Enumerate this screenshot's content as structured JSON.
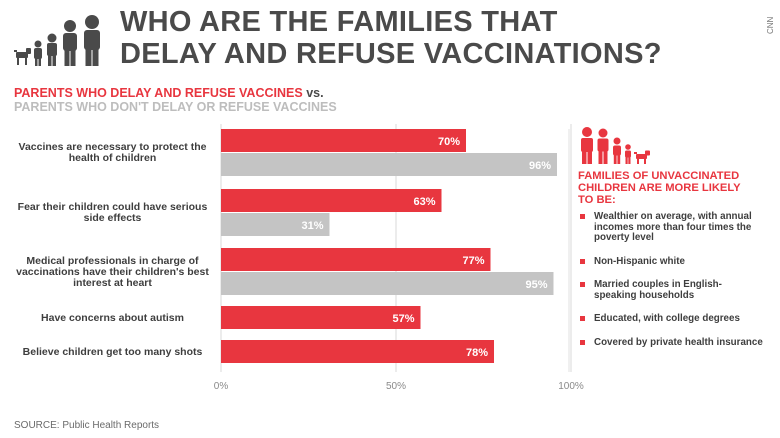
{
  "title": {
    "line1": "WHO ARE THE FAMILIES THAT",
    "line2": "DELAY AND REFUSE VACCINATIONS?"
  },
  "watermark": "CNN",
  "subtitle": {
    "red": "PARENTS WHO DELAY AND REFUSE VACCINES",
    "vs": "vs.",
    "gray": "PARENTS WHO DON'T DELAY OR REFUSE VACCINES"
  },
  "colors": {
    "red": "#e8363f",
    "gray": "#c4c4c4",
    "title": "#4a4a4a",
    "icon_gray": "#4a4a4a"
  },
  "chart_data": {
    "type": "bar",
    "orientation": "horizontal",
    "categories": [
      "Vaccines are necessary to protect the\nhealth of children",
      "Fear their children could have serious\nside effects",
      "Medical professionals in charge of\nvaccinations have their children's best\ninterest at heart",
      "Have concerns about autism",
      "Believe children get too many shots"
    ],
    "series": [
      {
        "name": "PARENTS WHO DELAY AND REFUSE VACCINES",
        "color": "#e8363f",
        "values": [
          70,
          63,
          77,
          57,
          78
        ],
        "labels": [
          "70%",
          "63%",
          "77%",
          "57%",
          "78%"
        ]
      },
      {
        "name": "PARENTS WHO DON'T DELAY OR REFUSE VACCINES",
        "color": "#c4c4c4",
        "values": [
          96,
          31,
          95,
          null,
          null
        ],
        "labels": [
          "96%",
          "31%",
          "95%",
          null,
          null
        ]
      }
    ],
    "xlim": [
      0,
      100
    ],
    "xticks": [
      "0%",
      "50%",
      "100%"
    ],
    "grid": true,
    "legend": "top-left"
  },
  "side_panel": {
    "heading": "FAMILIES OF UNVACCINATED CHILDREN ARE MORE LIKELY TO BE:",
    "items": [
      "Wealthier on average, with annual incomes more than four times the poverty level",
      "Non-Hispanic white",
      "Married couples in English-speaking households",
      "Educated, with college degrees",
      "Covered by private health insurance"
    ]
  },
  "source": "SOURCE: Public Health Reports"
}
